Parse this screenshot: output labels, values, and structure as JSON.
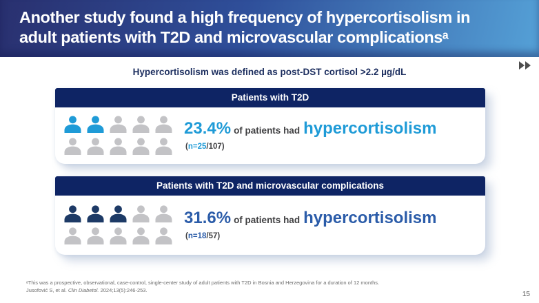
{
  "slide": {
    "title_line1": "Another study found a high frequency of hypercortisolism in",
    "title_line2": "adult patients with T2D and microvascular complicationsᵃ",
    "subtitle": "Hypercortisolism was defined as post-DST cortisol >2.2 µg/dL",
    "nav_icon": "fast-forward-icon",
    "page_number": "15",
    "footnote_line1": "ᵃThis was a prospective, observational, case-control, single-center study of adult patients with T2D in Bosnia and Herzegovina for a duration of 12 months.",
    "footnote_ref_authors": "Jusofović S, et al. ",
    "footnote_ref_journal": "Clin Diabetol.",
    "footnote_ref_pages": " 2024;13(5):246-253."
  },
  "colors": {
    "header_gradient_start": "#29306f",
    "header_gradient_end": "#55a1d7",
    "card_header_bg": "#0e2464",
    "subtitle_text": "#1b2d5e",
    "body_text": "#3f3f41",
    "footnote_text": "#6d6d6d",
    "icon_base_gray": "#c3c3c6"
  },
  "cards": [
    {
      "header": "Patients with T2D",
      "percent": "23.4%",
      "mid_text": "of patients had",
      "highlight_word": "hypercortisolism",
      "n_prefix": "(",
      "n_value": "n=25",
      "n_suffix": "/107)",
      "accent_color": "#1f9bd7",
      "pictogram": {
        "total": 10,
        "highlighted": 2,
        "per_row": 5,
        "highlight_color": "#1f9bd7",
        "base_color": "#c3c3c6"
      }
    },
    {
      "header": "Patients with T2D and microvascular complications",
      "percent": "31.6%",
      "mid_text": "of patients had",
      "highlight_word": "hypercortisolism",
      "n_prefix": "(",
      "n_value": "n=18",
      "n_suffix": "/57)",
      "accent_color": "#2b5ca9",
      "pictogram": {
        "total": 10,
        "highlighted": 3,
        "per_row": 5,
        "highlight_color": "#1d3a66",
        "base_color": "#c3c3c6"
      }
    }
  ]
}
